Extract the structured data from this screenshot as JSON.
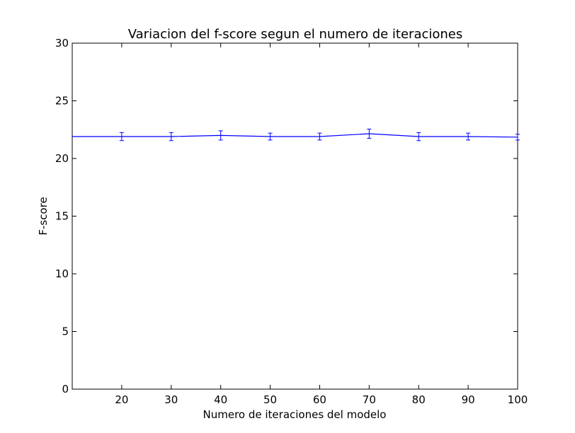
{
  "chart_data": {
    "type": "line",
    "title": "Variacion del f-score segun el numero de iteraciones",
    "xlabel": "Numero de iteraciones del modelo",
    "ylabel": "F-score",
    "xlim": [
      10,
      100
    ],
    "ylim": [
      0,
      30
    ],
    "x_ticks": [
      20,
      30,
      40,
      50,
      60,
      70,
      80,
      90,
      100
    ],
    "y_ticks": [
      0,
      5,
      10,
      15,
      20,
      25,
      30
    ],
    "grid": false,
    "legend": "none",
    "series": [
      {
        "color": "#0000ff",
        "x": [
          10,
          20,
          30,
          40,
          50,
          60,
          70,
          80,
          90,
          100
        ],
        "y": [
          21.9,
          21.9,
          21.9,
          22.0,
          21.9,
          21.9,
          22.15,
          21.9,
          21.9,
          21.85
        ],
        "error": [
          null,
          0.35,
          0.35,
          0.4,
          0.3,
          0.3,
          0.4,
          0.35,
          0.3,
          0.25
        ]
      }
    ]
  }
}
